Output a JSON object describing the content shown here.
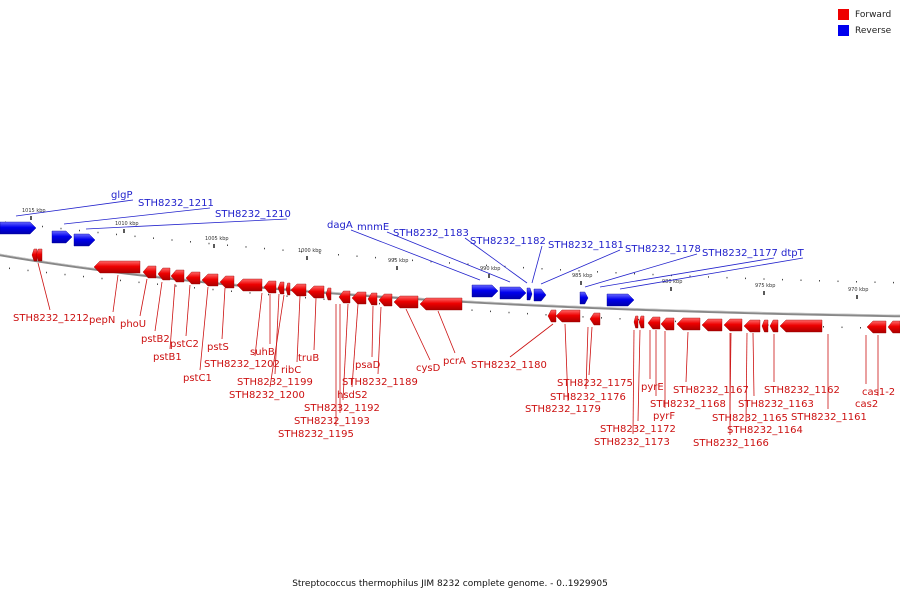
{
  "legend": [
    {
      "label": "Forward",
      "color": "#ee0000"
    },
    {
      "label": "Reverse",
      "color": "#0000ee"
    }
  ],
  "caption": "Streptococcus thermophilus JIM 8232 complete genome. - 0..1929905",
  "ticks": [
    "1015 kbp",
    "1010 kbp",
    "1005 kbp",
    "1000 kbp",
    "995 kbp",
    "990 kbp",
    "985 kbp",
    "980 kbp",
    "975 kbp",
    "970 kbp"
  ],
  "reverse_labels": [
    "glgP",
    "STH8232_1211",
    "STH8232_1210",
    "dagA",
    "mnmE",
    "STH8232_1183",
    "STH8232_1182",
    "STH8232_1181",
    "STH8232_1178",
    "STH8232_1177",
    "dtpT"
  ],
  "forward_labels": [
    "STH8232_1212",
    "pepN",
    "phoU",
    "pstB2",
    "pstB1",
    "pstC2",
    "pstC1",
    "pstS",
    "STH8232_1202",
    "suhB",
    "STH8232_1199",
    "STH8232_1200",
    "ribC",
    "truB",
    "hsdS2",
    "STH8232_1192",
    "STH8232_1193",
    "STH8232_1195",
    "psaD",
    "STH8232_1189",
    "cysD",
    "pcrA",
    "STH8232_1180",
    "STH8232_1175",
    "STH8232_1176",
    "STH8232_1179",
    "pyrE",
    "STH8232_1168",
    "pyrF",
    "STH8232_1172",
    "STH8232_1173",
    "STH8232_1167",
    "STH8232_1165",
    "STH8232_1163",
    "STH8232_1164",
    "STH8232_1166",
    "STH8232_1162",
    "STH8232_1161",
    "cas1-2",
    "cas2"
  ]
}
